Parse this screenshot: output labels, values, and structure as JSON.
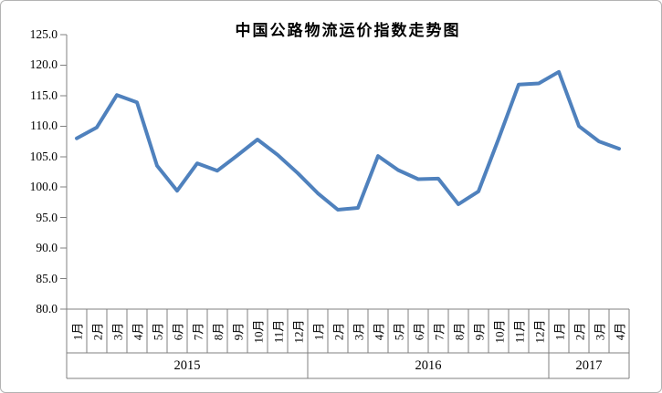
{
  "chart_data": {
    "type": "line",
    "title": "中国公路物流运价指数走势图",
    "xlabel": "",
    "ylabel": "",
    "ylim": [
      80,
      125
    ],
    "ytick_step": 5,
    "ytick_labels": [
      "125.0",
      "120.0",
      "115.0",
      "110.0",
      "105.0",
      "100.0",
      "95.0",
      "90.0",
      "85.0",
      "80.0"
    ],
    "grid": false,
    "legend": false,
    "line_color": "#4F81BD",
    "axis_line_color": "#808080",
    "groups": [
      {
        "year": "2015",
        "months": [
          "1月",
          "2月",
          "3月",
          "4月",
          "5月",
          "6月",
          "7月",
          "8月",
          "9月",
          "10月",
          "11月",
          "12月"
        ],
        "values": [
          108.0,
          109.8,
          115.1,
          113.9,
          103.5,
          99.4,
          103.9,
          102.7,
          105.2,
          107.8,
          105.3,
          102.3
        ]
      },
      {
        "year": "2016",
        "months": [
          "1月",
          "2月",
          "3月",
          "4月",
          "5月",
          "6月",
          "7月",
          "8月",
          "9月",
          "10月",
          "11月",
          "12月"
        ],
        "values": [
          99.0,
          96.3,
          96.6,
          105.1,
          102.8,
          101.3,
          101.4,
          97.2,
          99.3,
          107.9,
          116.8,
          117.0
        ]
      },
      {
        "year": "2017",
        "months": [
          "1月",
          "2月",
          "3月",
          "4月"
        ],
        "values": [
          118.9,
          110.0,
          107.5,
          106.3
        ]
      }
    ]
  }
}
